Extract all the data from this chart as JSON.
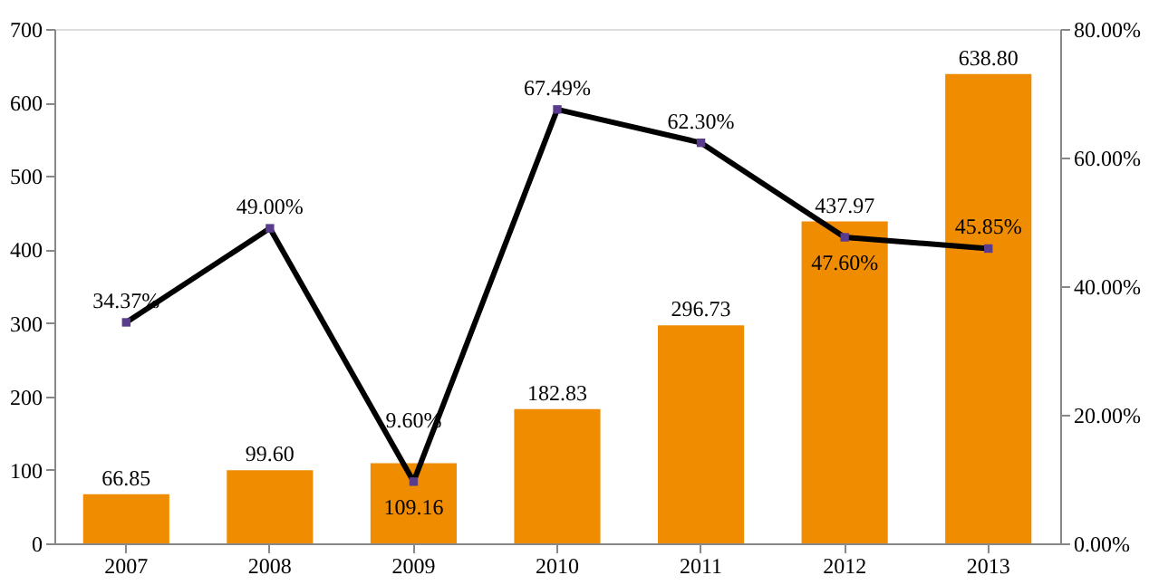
{
  "chart_data": {
    "type": "bar",
    "categories": [
      "2007",
      "2008",
      "2009",
      "2010",
      "2011",
      "2012",
      "2013"
    ],
    "series": [
      {
        "color": "#f08c00",
        "values": [
          66.85,
          99.6,
          109.16,
          182.83,
          296.73,
          437.97,
          638.8
        ],
        "value_labels": [
          "66.85",
          "99.60",
          "109.16",
          "182.83",
          "296.73",
          "437.97",
          "638.80"
        ]
      },
      {
        "type": "line",
        "axis": "y2",
        "color": "#000000",
        "values": [
          34.37,
          49.0,
          9.6,
          67.49,
          62.3,
          47.6,
          45.85
        ],
        "value_labels": [
          "34.37%",
          "49.00%",
          "9.60%",
          "67.49%",
          "62.30%",
          "47.60%",
          "45.85%"
        ],
        "marker": "square",
        "line_style": "solid"
      }
    ],
    "ylim": [
      0,
      700
    ],
    "yticks": [
      0,
      100,
      200,
      300,
      400,
      500,
      600,
      700
    ],
    "y2lim": [
      0,
      80
    ],
    "y2ticks": [
      {
        "value": 0,
        "label": "0.00%"
      },
      {
        "value": 20,
        "label": "20.00%"
      },
      {
        "value": 40,
        "label": "40.00%"
      },
      {
        "value": 60,
        "label": "60.00%"
      },
      {
        "value": 80,
        "label": "80.00%"
      }
    ],
    "grid": false
  }
}
